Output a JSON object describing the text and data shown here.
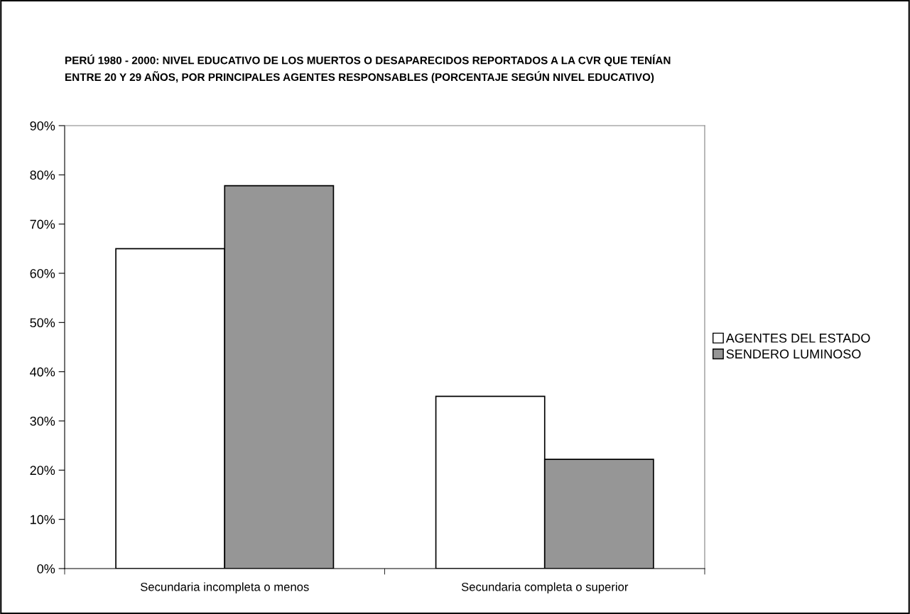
{
  "chart_data": {
    "type": "bar",
    "title": "PERÚ 1980 - 2000: NIVEL EDUCATIVO DE LOS MUERTOS O DESAPARECIDOS REPORTADOS A LA CVR QUE TENÍAN\nENTRE 20 Y 29 AÑOS, POR PRINCIPALES AGENTES RESPONSABLES (PORCENTAJE SEGÚN NIVEL EDUCATIVO)",
    "categories": [
      "Secundaria incompleta o menos",
      "Secundaria completa o superior"
    ],
    "series": [
      {
        "name": "AGENTES DEL ESTADO",
        "color": "#ffffff",
        "values": [
          65,
          35
        ]
      },
      {
        "name": "SENDERO LUMINOSO",
        "color": "#969696",
        "values": [
          77.8,
          22.2
        ]
      }
    ],
    "ylim": [
      0,
      90
    ],
    "yticks": [
      {
        "value": 0,
        "label": "0%"
      },
      {
        "value": 10,
        "label": "10%"
      },
      {
        "value": 20,
        "label": "20%"
      },
      {
        "value": 30,
        "label": "30%"
      },
      {
        "value": 40,
        "label": "40%"
      },
      {
        "value": 50,
        "label": "50%"
      },
      {
        "value": 60,
        "label": "60%"
      },
      {
        "value": 70,
        "label": "70%"
      },
      {
        "value": 80,
        "label": "80%"
      },
      {
        "value": 90,
        "label": "90%"
      }
    ],
    "grid": false,
    "legend": "right"
  }
}
